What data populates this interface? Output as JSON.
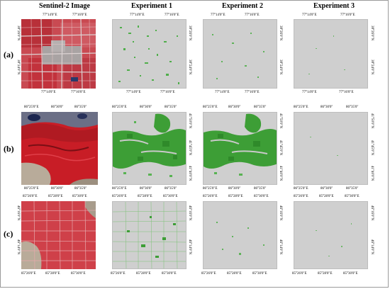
{
  "columns": [
    "Sentinel-2 Image",
    "Experiment 1",
    "Experiment 2",
    "Experiment 3"
  ],
  "rows": [
    {
      "label": "(a)",
      "lon_ticks": [
        "77°14'0\"E",
        "77°16'0\"E"
      ],
      "lat_ticks": [
        "38°26'0\"N",
        "38°24'0\"N"
      ]
    },
    {
      "label": "(b)",
      "lon_ticks": [
        "86°25'0\"E",
        "86°30'0\"",
        "86°35'0\""
      ],
      "lat_ticks": [
        "41°50'0\"N",
        "41°45'0\"N",
        "41°40'0\"N"
      ]
    },
    {
      "label": "(c)",
      "lon_ticks": [
        "85°26'0\"E",
        "85°28'0\"E",
        "85°30'0\"E"
      ],
      "lat_ticks": [
        "46°16'0\"N",
        "46°14'0\"N"
      ]
    }
  ],
  "colors": {
    "vegetation_red": "#c8202a",
    "detection_green": "#3aa63a",
    "map_gray": "#cfcfcf"
  }
}
